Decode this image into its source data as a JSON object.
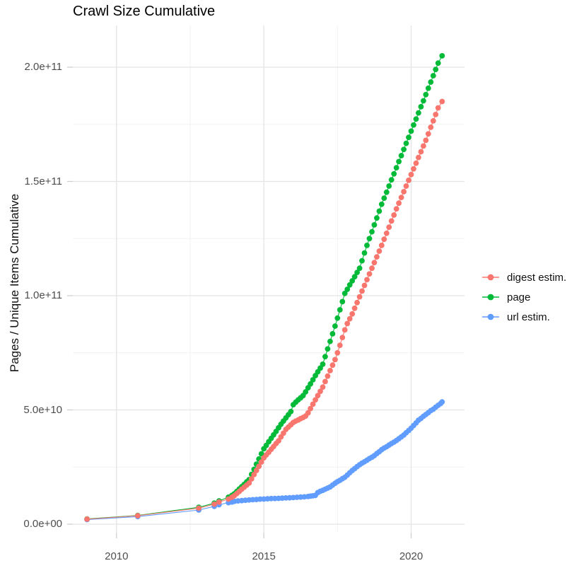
{
  "page": {
    "title": "Crawl Size Cumulative"
  },
  "chart_data": {
    "type": "scatter",
    "title": "Crawl Size Cumulative",
    "xlabel": "",
    "ylabel": "Pages / Unique Items Cumulative",
    "value_unit_note": "values stored in billions (1e9 items)",
    "grid": "on",
    "x_axis": {
      "range": [
        2008.55,
        2021.8
      ],
      "ticks": [
        {
          "value": 2010,
          "label": "2010"
        },
        {
          "value": 2015,
          "label": "2015"
        },
        {
          "value": 2020,
          "label": "2020"
        }
      ],
      "minor": [
        2012.5,
        2017.5
      ]
    },
    "y_axis": {
      "range_billions": [
        -3.7,
        215
      ],
      "ticks": [
        {
          "value": 0,
          "label": "0.0e+00"
        },
        {
          "value": 50,
          "label": "5.0e+10"
        },
        {
          "value": 100,
          "label": "1.0e+11"
        },
        {
          "value": 150,
          "label": "1.5e+11"
        },
        {
          "value": 200,
          "label": "2.0e+11"
        }
      ],
      "minor": [
        25,
        75,
        125,
        175
      ]
    },
    "legend": {
      "position": "right",
      "items": [
        {
          "label": "digest estim.",
          "color": "#F8766D"
        },
        {
          "label": "page",
          "color": "#00BA38"
        },
        {
          "label": "url estim.",
          "color": "#619CFF"
        }
      ]
    },
    "series": [
      {
        "name": "digest estim.",
        "color": "#F8766D",
        "points": [
          [
            2009,
            2.2
          ],
          [
            2010.72,
            3.7
          ],
          [
            2012.79,
            7
          ],
          [
            2013.32,
            8.8
          ],
          [
            2013.48,
            9.7
          ],
          [
            2013.8,
            11
          ],
          [
            2013.92,
            11.8
          ],
          [
            2014,
            12.5
          ],
          [
            2014.083,
            13.4
          ],
          [
            2014.167,
            14.3
          ],
          [
            2014.25,
            15.3
          ],
          [
            2014.333,
            16.2
          ],
          [
            2014.417,
            17.1
          ],
          [
            2014.5,
            18
          ],
          [
            2014.583,
            19.8
          ],
          [
            2014.667,
            21.7
          ],
          [
            2014.75,
            23.5
          ],
          [
            2014.833,
            25.3
          ],
          [
            2014.917,
            27.2
          ],
          [
            2015,
            29
          ],
          [
            2015.083,
            30.3
          ],
          [
            2015.167,
            31.5
          ],
          [
            2015.25,
            32.8
          ],
          [
            2015.333,
            34
          ],
          [
            2015.417,
            35.3
          ],
          [
            2015.5,
            36.5
          ],
          [
            2015.583,
            38.2
          ],
          [
            2015.667,
            39.8
          ],
          [
            2015.75,
            41.5
          ],
          [
            2015.833,
            42.5
          ],
          [
            2015.917,
            43.5
          ],
          [
            2016,
            44.5
          ],
          [
            2016.083,
            45.1
          ],
          [
            2016.167,
            45.6
          ],
          [
            2016.25,
            46.2
          ],
          [
            2016.333,
            46.7
          ],
          [
            2016.417,
            47.3
          ],
          [
            2016.5,
            48.7
          ],
          [
            2016.583,
            50.6
          ],
          [
            2016.667,
            52.5
          ],
          [
            2016.75,
            54.4
          ],
          [
            2016.833,
            56.3
          ],
          [
            2016.917,
            58.1
          ],
          [
            2017,
            60
          ],
          [
            2017.083,
            62.4
          ],
          [
            2017.167,
            64.8
          ],
          [
            2017.25,
            67.2
          ],
          [
            2017.333,
            69.6
          ],
          [
            2017.417,
            72
          ],
          [
            2017.5,
            75
          ],
          [
            2017.583,
            78.3
          ],
          [
            2017.667,
            81.7
          ],
          [
            2017.75,
            85
          ],
          [
            2017.833,
            87.8
          ],
          [
            2017.917,
            89.9
          ],
          [
            2018,
            92
          ],
          [
            2018.083,
            94.5
          ],
          [
            2018.167,
            97
          ],
          [
            2018.25,
            99.5
          ],
          [
            2018.333,
            102
          ],
          [
            2018.417,
            104.5
          ],
          [
            2018.5,
            107
          ],
          [
            2018.583,
            109.5
          ],
          [
            2018.667,
            112
          ],
          [
            2018.75,
            114.5
          ],
          [
            2018.833,
            117
          ],
          [
            2018.917,
            119.5
          ],
          [
            2019,
            122
          ],
          [
            2019.083,
            124.7
          ],
          [
            2019.167,
            127.3
          ],
          [
            2019.25,
            130
          ],
          [
            2019.333,
            132.7
          ],
          [
            2019.417,
            135.3
          ],
          [
            2019.5,
            138
          ],
          [
            2019.583,
            140.5
          ],
          [
            2019.667,
            143
          ],
          [
            2019.75,
            145.5
          ],
          [
            2019.833,
            148
          ],
          [
            2019.917,
            150.5
          ],
          [
            2020,
            153
          ],
          [
            2020.083,
            155.5
          ],
          [
            2020.167,
            158
          ],
          [
            2020.25,
            160.5
          ],
          [
            2020.333,
            163
          ],
          [
            2020.417,
            165.5
          ],
          [
            2020.5,
            168
          ],
          [
            2020.583,
            170.8
          ],
          [
            2020.667,
            173.7
          ],
          [
            2020.75,
            176.5
          ],
          [
            2020.833,
            179.3
          ],
          [
            2020.917,
            182.2
          ],
          [
            2021.05,
            185
          ]
        ]
      },
      {
        "name": "page",
        "color": "#00BA38",
        "points": [
          [
            2009,
            2.3
          ],
          [
            2010.72,
            3.8
          ],
          [
            2012.79,
            7.4
          ],
          [
            2013.32,
            9.2
          ],
          [
            2013.48,
            10.2
          ],
          [
            2013.8,
            11.8
          ],
          [
            2013.92,
            12.6
          ],
          [
            2014,
            13.3
          ],
          [
            2014.083,
            14.3
          ],
          [
            2014.167,
            15.4
          ],
          [
            2014.25,
            16.4
          ],
          [
            2014.333,
            17.4
          ],
          [
            2014.417,
            18.5
          ],
          [
            2014.5,
            19.5
          ],
          [
            2014.583,
            21.8
          ],
          [
            2014.667,
            24
          ],
          [
            2014.75,
            26.3
          ],
          [
            2014.833,
            28.5
          ],
          [
            2014.917,
            30.8
          ],
          [
            2015,
            33
          ],
          [
            2015.083,
            34.5
          ],
          [
            2015.167,
            36.1
          ],
          [
            2015.25,
            37.6
          ],
          [
            2015.333,
            39.1
          ],
          [
            2015.417,
            40.6
          ],
          [
            2015.5,
            42.2
          ],
          [
            2015.583,
            43.7
          ],
          [
            2015.667,
            45.1
          ],
          [
            2015.75,
            46.5
          ],
          [
            2015.833,
            47.9
          ],
          [
            2015.917,
            49.3
          ],
          [
            2016,
            52.3
          ],
          [
            2016.083,
            53.4
          ],
          [
            2016.167,
            54.4
          ],
          [
            2016.25,
            55.3
          ],
          [
            2016.333,
            56.3
          ],
          [
            2016.417,
            57.9
          ],
          [
            2016.5,
            59.7
          ],
          [
            2016.583,
            61.4
          ],
          [
            2016.667,
            63.2
          ],
          [
            2016.75,
            65
          ],
          [
            2016.833,
            66.7
          ],
          [
            2016.917,
            68.3
          ],
          [
            2017,
            70
          ],
          [
            2017.083,
            73.3
          ],
          [
            2017.167,
            76.7
          ],
          [
            2017.25,
            80
          ],
          [
            2017.333,
            83.3
          ],
          [
            2017.417,
            86.7
          ],
          [
            2017.5,
            90.2
          ],
          [
            2017.583,
            93.8
          ],
          [
            2017.667,
            97.4
          ],
          [
            2017.75,
            101
          ],
          [
            2017.833,
            102.8
          ],
          [
            2017.917,
            104.7
          ],
          [
            2018,
            106.5
          ],
          [
            2018.083,
            108.3
          ],
          [
            2018.167,
            110.2
          ],
          [
            2018.25,
            112
          ],
          [
            2018.333,
            115.3
          ],
          [
            2018.417,
            118.7
          ],
          [
            2018.5,
            122
          ],
          [
            2018.583,
            125
          ],
          [
            2018.667,
            128
          ],
          [
            2018.75,
            131
          ],
          [
            2018.833,
            134
          ],
          [
            2018.917,
            137
          ],
          [
            2019,
            140
          ],
          [
            2019.083,
            142.7
          ],
          [
            2019.167,
            145.3
          ],
          [
            2019.25,
            148
          ],
          [
            2019.333,
            150.7
          ],
          [
            2019.417,
            153.3
          ],
          [
            2019.5,
            156
          ],
          [
            2019.583,
            158.7
          ],
          [
            2019.667,
            161.3
          ],
          [
            2019.75,
            164
          ],
          [
            2019.833,
            166.7
          ],
          [
            2019.917,
            169.3
          ],
          [
            2020,
            172
          ],
          [
            2020.083,
            174.7
          ],
          [
            2020.167,
            177.3
          ],
          [
            2020.25,
            180
          ],
          [
            2020.333,
            182.7
          ],
          [
            2020.417,
            185.3
          ],
          [
            2020.5,
            188
          ],
          [
            2020.583,
            190.8
          ],
          [
            2020.667,
            193.5
          ],
          [
            2020.75,
            196.3
          ],
          [
            2020.833,
            199
          ],
          [
            2020.917,
            201.8
          ],
          [
            2021.05,
            205
          ]
        ]
      },
      {
        "name": "url estim.",
        "color": "#619CFF",
        "points": [
          [
            2009,
            2
          ],
          [
            2010.72,
            3.3
          ],
          [
            2012.79,
            6.2
          ],
          [
            2013.32,
            7.8
          ],
          [
            2013.48,
            8.5
          ],
          [
            2013.8,
            9.4
          ],
          [
            2013.92,
            9.7
          ],
          [
            2014,
            10
          ],
          [
            2014.125,
            10.2
          ],
          [
            2014.25,
            10.3
          ],
          [
            2014.375,
            10.45
          ],
          [
            2014.5,
            10.6
          ],
          [
            2014.625,
            10.7
          ],
          [
            2014.75,
            10.8
          ],
          [
            2014.875,
            10.95
          ],
          [
            2015,
            11
          ],
          [
            2015.125,
            11.1
          ],
          [
            2015.25,
            11.2
          ],
          [
            2015.375,
            11.25
          ],
          [
            2015.5,
            11.3
          ],
          [
            2015.625,
            11.4
          ],
          [
            2015.75,
            11.5
          ],
          [
            2015.875,
            11.55
          ],
          [
            2016,
            11.65
          ],
          [
            2016.125,
            11.75
          ],
          [
            2016.25,
            11.85
          ],
          [
            2016.375,
            11.95
          ],
          [
            2016.5,
            12.1
          ],
          [
            2016.583,
            12.25
          ],
          [
            2016.667,
            12.4
          ],
          [
            2016.75,
            12.6
          ],
          [
            2016.833,
            13.8
          ],
          [
            2016.917,
            14.4
          ],
          [
            2017,
            14.8
          ],
          [
            2017.083,
            15.3
          ],
          [
            2017.167,
            15.8
          ],
          [
            2017.25,
            16.3
          ],
          [
            2017.333,
            17.1
          ],
          [
            2017.417,
            17.9
          ],
          [
            2017.5,
            18.6
          ],
          [
            2017.583,
            19.2
          ],
          [
            2017.667,
            19.9
          ],
          [
            2017.75,
            20.5
          ],
          [
            2017.833,
            21.5
          ],
          [
            2017.917,
            22.5
          ],
          [
            2018,
            23.5
          ],
          [
            2018.083,
            24.3
          ],
          [
            2018.167,
            25.2
          ],
          [
            2018.25,
            26
          ],
          [
            2018.333,
            26.7
          ],
          [
            2018.417,
            27.3
          ],
          [
            2018.5,
            28
          ],
          [
            2018.583,
            28.7
          ],
          [
            2018.667,
            29.3
          ],
          [
            2018.75,
            30
          ],
          [
            2018.833,
            30.9
          ],
          [
            2018.917,
            31.7
          ],
          [
            2019,
            32.6
          ],
          [
            2019.083,
            33.3
          ],
          [
            2019.167,
            33.9
          ],
          [
            2019.25,
            34.6
          ],
          [
            2019.333,
            35.3
          ],
          [
            2019.417,
            35.9
          ],
          [
            2019.5,
            36.6
          ],
          [
            2019.583,
            37.4
          ],
          [
            2019.667,
            38.2
          ],
          [
            2019.75,
            39
          ],
          [
            2019.833,
            40
          ],
          [
            2019.917,
            41
          ],
          [
            2020,
            42
          ],
          [
            2020.083,
            43.2
          ],
          [
            2020.167,
            44.3
          ],
          [
            2020.25,
            45.5
          ],
          [
            2020.333,
            46.3
          ],
          [
            2020.417,
            47.2
          ],
          [
            2020.5,
            48
          ],
          [
            2020.583,
            48.8
          ],
          [
            2020.667,
            49.7
          ],
          [
            2020.75,
            50.3
          ],
          [
            2020.833,
            51.2
          ],
          [
            2020.917,
            52
          ],
          [
            2021,
            52.8
          ],
          [
            2021.05,
            53.5
          ]
        ]
      }
    ],
    "style_colors": {
      "grid_major": "#e4e4e4",
      "grid_minor": "#f2f2f2",
      "tick_mark": "#cccccc",
      "axis_text": "#4d4d4d",
      "title_text": "#000000"
    }
  }
}
